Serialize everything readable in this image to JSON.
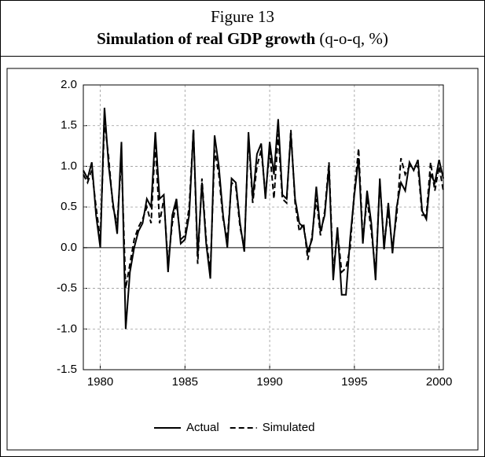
{
  "chart_data": {
    "type": "line",
    "title": "Figure 13",
    "subtitle": "Simulation of real GDP growth",
    "subtitle_note": "(q-o-q, %)",
    "x": [
      1979,
      1979.25,
      1979.5,
      1979.75,
      1980,
      1980.25,
      1980.5,
      1980.75,
      1981,
      1981.25,
      1981.5,
      1981.75,
      1982,
      1982.25,
      1982.5,
      1982.75,
      1983,
      1983.25,
      1983.5,
      1983.75,
      1984,
      1984.25,
      1984.5,
      1984.75,
      1985,
      1985.25,
      1985.5,
      1985.75,
      1986,
      1986.25,
      1986.5,
      1986.75,
      1987,
      1987.25,
      1987.5,
      1987.75,
      1988,
      1988.25,
      1988.5,
      1988.75,
      1989,
      1989.25,
      1989.5,
      1989.75,
      1990,
      1990.25,
      1990.5,
      1990.75,
      1991,
      1991.25,
      1991.5,
      1991.75,
      1992,
      1992.25,
      1992.5,
      1992.75,
      1993,
      1993.25,
      1993.5,
      1993.75,
      1994,
      1994.25,
      1994.5,
      1994.75,
      1995,
      1995.25,
      1995.5,
      1995.75,
      1996,
      1996.25,
      1996.5,
      1996.75,
      1997,
      1997.25,
      1997.5,
      1997.75,
      1998,
      1998.25,
      1998.5,
      1998.75,
      1999,
      1999.25,
      1999.5,
      1999.75,
      2000,
      2000.25
    ],
    "series": [
      {
        "name": "Actual",
        "color": "#000000",
        "dash": "solid",
        "values": [
          0.95,
          0.85,
          1.05,
          0.4,
          0.0,
          1.72,
          1.0,
          0.55,
          0.17,
          1.3,
          -1.0,
          -0.3,
          0.0,
          0.2,
          0.3,
          0.6,
          0.5,
          1.42,
          0.6,
          0.65,
          -0.3,
          0.4,
          0.6,
          0.05,
          0.1,
          0.4,
          1.45,
          -0.1,
          0.8,
          0.05,
          -0.38,
          1.38,
          1.0,
          0.4,
          0.0,
          0.85,
          0.8,
          0.3,
          -0.05,
          1.42,
          0.6,
          1.15,
          1.28,
          0.6,
          1.3,
          0.9,
          1.58,
          0.65,
          0.6,
          1.4,
          0.6,
          0.3,
          0.25,
          -0.05,
          0.1,
          0.75,
          0.2,
          0.4,
          1.0,
          -0.4,
          0.25,
          -0.58,
          -0.58,
          0.12,
          0.65,
          1.1,
          0.05,
          0.7,
          0.3,
          -0.4,
          0.85,
          -0.02,
          0.55,
          -0.07,
          0.5,
          0.8,
          0.7,
          1.05,
          0.95,
          1.08,
          0.45,
          0.35,
          0.9,
          0.8,
          1.08,
          0.85
        ]
      },
      {
        "name": "Simulated",
        "color": "#000000",
        "dash": "dashed",
        "values": [
          0.9,
          0.8,
          0.95,
          0.5,
          0.1,
          1.55,
          1.1,
          0.5,
          0.3,
          1.1,
          -0.5,
          -0.2,
          0.1,
          0.25,
          0.35,
          0.5,
          0.3,
          1.3,
          0.3,
          0.6,
          -0.2,
          0.3,
          0.55,
          0.1,
          0.15,
          0.5,
          1.45,
          -0.2,
          0.85,
          0.1,
          -0.3,
          1.2,
          0.9,
          0.35,
          0.1,
          0.8,
          0.75,
          0.25,
          0.0,
          1.35,
          0.55,
          1.0,
          1.2,
          0.65,
          1.2,
          0.6,
          1.4,
          0.6,
          0.55,
          1.45,
          0.55,
          0.2,
          0.3,
          -0.15,
          0.15,
          0.6,
          0.15,
          0.45,
          1.05,
          -0.3,
          0.2,
          -0.3,
          -0.25,
          0.0,
          0.7,
          1.22,
          0.1,
          0.6,
          0.2,
          -0.3,
          0.8,
          0.05,
          0.45,
          0.0,
          0.4,
          1.1,
          0.9,
          1.0,
          1.0,
          1.0,
          0.4,
          0.4,
          1.05,
          0.7,
          1.0,
          0.7
        ]
      }
    ],
    "xlim": [
      1979,
      2000.25
    ],
    "xticks": [
      1980,
      1985,
      1990,
      1995,
      2000
    ],
    "ylim": [
      -1.5,
      2.0
    ],
    "yticks": [
      {
        "value": -1.5,
        "label": "-1.5"
      },
      {
        "value": -1.0,
        "label": "-1.0"
      },
      {
        "value": -0.5,
        "label": "-0.5"
      },
      {
        "value": 0,
        "label": "0.0"
      },
      {
        "value": 0.5,
        "label": "0.5"
      },
      {
        "value": 1.0,
        "label": "1.0"
      },
      {
        "value": 1.5,
        "label": "1.5"
      },
      {
        "value": 2.0,
        "label": "2.0"
      }
    ],
    "grid": true,
    "legend": "bottom"
  }
}
